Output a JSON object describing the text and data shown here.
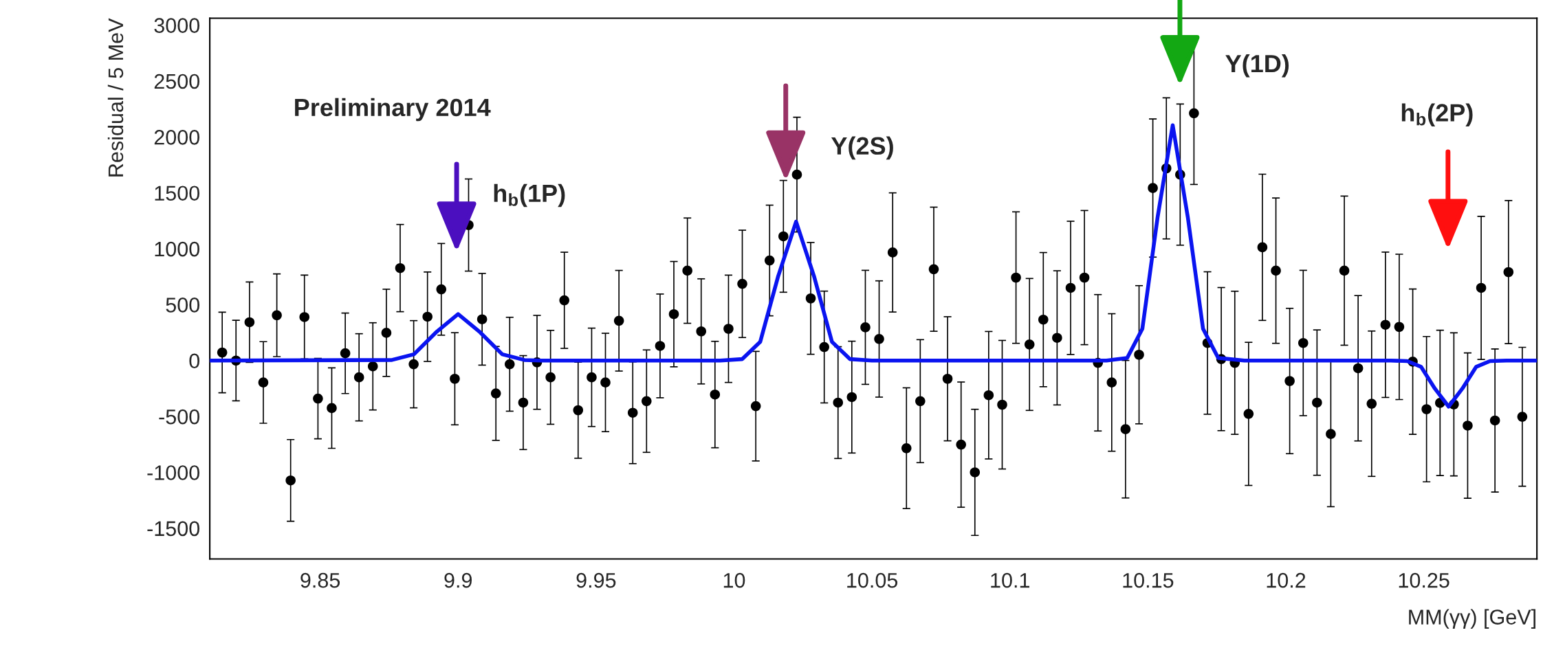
{
  "chart_data": {
    "type": "scatter",
    "xlabel": "MM(γγ) [GeV]",
    "ylabel": "Residual / 5 MeV",
    "xlim": [
      9.81,
      10.291
    ],
    "ylim": [
      -1775,
      3062
    ],
    "xticks": [
      9.85,
      9.9,
      9.95,
      10,
      10.05,
      10.1,
      10.15,
      10.2,
      10.25
    ],
    "yticks": [
      -1500,
      -1000,
      -500,
      0,
      500,
      1000,
      1500,
      2000,
      2500,
      3000
    ],
    "grid": false,
    "annotations": [
      "Preliminary 2014",
      "h$_{b}$(1P)",
      "Υ(2S)",
      "Υ(1D)",
      "h$_{b}$(2P)"
    ],
    "series": [
      {
        "marker": "circle",
        "color": "#000000",
        "x": [
          9.8145,
          9.8195,
          9.8244,
          9.8294,
          9.8343,
          9.8393,
          9.8443,
          9.8492,
          9.8542,
          9.8591,
          9.8641,
          9.8691,
          9.874,
          9.879,
          9.8839,
          9.8889,
          9.8939,
          9.8988,
          9.9038,
          9.9087,
          9.9137,
          9.9187,
          9.9236,
          9.9286,
          9.9335,
          9.9385,
          9.9435,
          9.9484,
          9.9534,
          9.9583,
          9.9633,
          9.9683,
          9.9732,
          9.9782,
          9.9831,
          9.9881,
          9.9931,
          9.998,
          10.003,
          10.0079,
          10.0129,
          10.0179,
          10.0228,
          10.0278,
          10.0327,
          10.0377,
          10.0427,
          10.0476,
          10.0526,
          10.0575,
          10.0625,
          10.0675,
          10.0724,
          10.0774,
          10.0823,
          10.0873,
          10.0923,
          10.0972,
          10.1022,
          10.1071,
          10.1121,
          10.1171,
          10.122,
          10.127,
          10.1319,
          10.1369,
          10.1419,
          10.1468,
          10.1518,
          10.1567,
          10.1617,
          10.1667,
          10.1716,
          10.1766,
          10.1815,
          10.1865,
          10.1915,
          10.1964,
          10.2014,
          10.2063,
          10.2113,
          10.2163,
          10.2212,
          10.2262,
          10.2311,
          10.2361,
          10.2411,
          10.246,
          10.251,
          10.2559,
          10.2609,
          10.2659,
          10.2708,
          10.2758,
          10.2807,
          10.2857
        ],
        "values": [
          72,
          0,
          343,
          -196,
          405,
          -1072,
          389,
          -340,
          -425,
          65,
          -150,
          -52,
          248,
          827,
          -33,
          392,
          637,
          -163,
          1212,
          369,
          -294,
          -33,
          -376,
          -16,
          -150,
          539,
          -444,
          -150,
          -196,
          356,
          -467,
          -363,
          131,
          415,
          804,
          261,
          -304,
          284,
          686,
          -408,
          895,
          1111,
          1663,
          556,
          121,
          -376,
          -327,
          297,
          193,
          967,
          -784,
          -363,
          817,
          -163,
          -752,
          -1000,
          -310,
          -395,
          742,
          144,
          366,
          203,
          650,
          742,
          -20,
          -196,
          -614,
          52,
          1543,
          1719,
          1663,
          2212,
          157,
          13,
          -20,
          -477,
          1013,
          804,
          -183,
          157,
          -376,
          -657,
          804,
          -69,
          -386,
          320,
          301,
          -10,
          -435,
          -379,
          -392,
          -582,
          650,
          -536,
          791,
          -503
        ],
        "errors": [
          360,
          360,
          360,
          365,
          370,
          365,
          375,
          360,
          360,
          360,
          390,
          390,
          390,
          390,
          390,
          400,
          410,
          412,
          412,
          410,
          420,
          420,
          420,
          420,
          420,
          430,
          430,
          440,
          440,
          450,
          455,
          458,
          464,
          471,
          471,
          470,
          476,
          480,
          480,
          490,
          495,
          500,
          513,
          500,
          500,
          500,
          500,
          510,
          520,
          533,
          540,
          550,
          555,
          555,
          560,
          564,
          570,
          575,
          588,
          590,
          600,
          600,
          596,
          600,
          610,
          615,
          615,
          618,
          618,
          631,
          631,
          637,
          637,
          640,
          640,
          640,
          654,
          650,
          650,
          650,
          650,
          650,
          667,
          650,
          650,
          650,
          650,
          650,
          650,
          650,
          640,
          650,
          640,
          640,
          640,
          621
        ]
      },
      {
        "type": "line",
        "color": "#0a14f0",
        "x": [
          9.81,
          9.876,
          9.884,
          9.892,
          9.9,
          9.908,
          9.916,
          9.924,
          9.93,
          9.995,
          10.003,
          10.0095,
          10.016,
          10.0225,
          10.029,
          10.0355,
          10.042,
          10.05,
          10.135,
          10.1425,
          10.148,
          10.1535,
          10.159,
          10.1645,
          10.17,
          10.1755,
          10.185,
          10.238,
          10.244,
          10.249,
          10.254,
          10.259,
          10.264,
          10.269,
          10.274,
          10.28,
          10.291
        ],
        "values": [
          0,
          5,
          56,
          252,
          415,
          252,
          56,
          5,
          0,
          0,
          13,
          168,
          754,
          1242,
          754,
          168,
          13,
          0,
          0,
          23,
          284,
          1278,
          2105,
          1278,
          284,
          23,
          0,
          0,
          -5,
          -56,
          -250,
          -412,
          -250,
          -56,
          -5,
          0,
          0
        ]
      }
    ]
  }
}
